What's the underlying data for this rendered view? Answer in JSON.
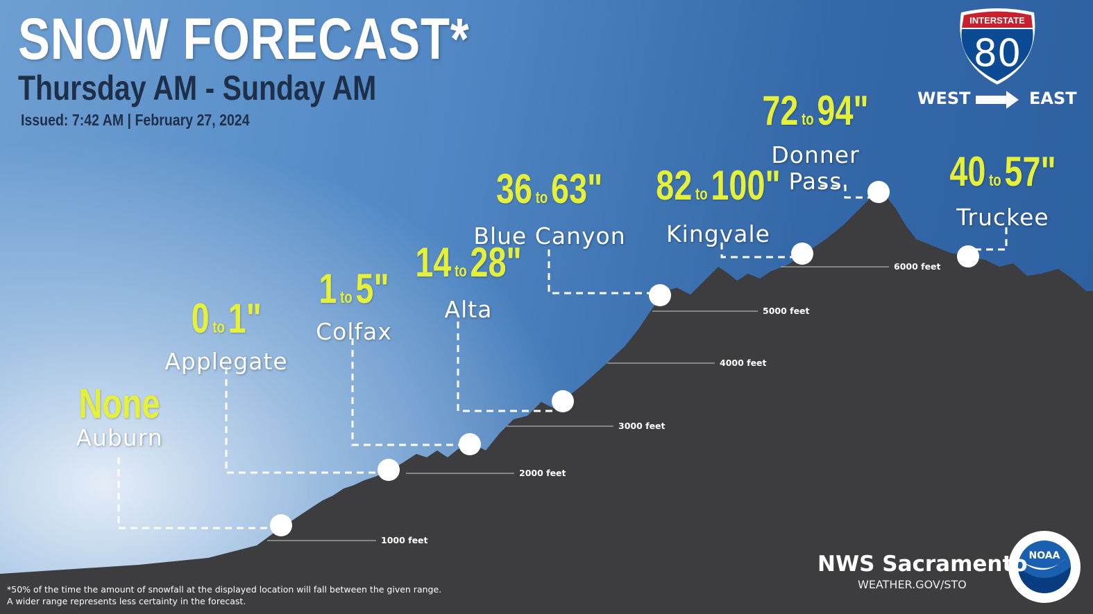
{
  "header": {
    "title": "SNOW FORECAST*",
    "subtitle": "Thursday AM - Sunday AM",
    "issued": "Issued: 7:42 AM | February 27, 2024"
  },
  "sign": {
    "top_label": "INTERSTATE",
    "number": "80",
    "direction_from": "WEST",
    "direction_to": "EAST",
    "colors": {
      "red": "#c8202f",
      "blue": "#0d4a94"
    }
  },
  "locations": [
    {
      "name": "Auburn",
      "amount": "None"
    },
    {
      "name": "Applegate",
      "low": "0",
      "connector": "to",
      "high": "1\""
    },
    {
      "name": "Colfax",
      "low": "1",
      "connector": "to",
      "high": "5\""
    },
    {
      "name": "Alta",
      "low": "14",
      "connector": "to",
      "high": "28\""
    },
    {
      "name": "Blue Canyon",
      "low": "36",
      "connector": "to",
      "high": "63\""
    },
    {
      "name": "Kingvale",
      "low": "82",
      "connector": "to",
      "high": "100\""
    },
    {
      "name_line1": "Donner",
      "name_line2": "Pass",
      "low": "72",
      "connector": "to",
      "high": "94\""
    },
    {
      "name": "Truckee",
      "low": "40",
      "connector": "to",
      "high": "57\""
    }
  ],
  "elevations": [
    "1000 feet",
    "2000 feet",
    "3000 feet",
    "4000 feet",
    "5000 feet",
    "6000 feet"
  ],
  "footer": {
    "note_line1": "*50% of the time the amount of snowfall at the displayed location will fall between the given range.",
    "note_line2": "A wider range represents less certainty in the forecast.",
    "office": "NWS Sacramento",
    "website": "WEATHER.GOV/STO",
    "logo_text": "NOAA"
  },
  "colors": {
    "amount": "#e4f03a",
    "terrain": "#3d3d3f"
  }
}
